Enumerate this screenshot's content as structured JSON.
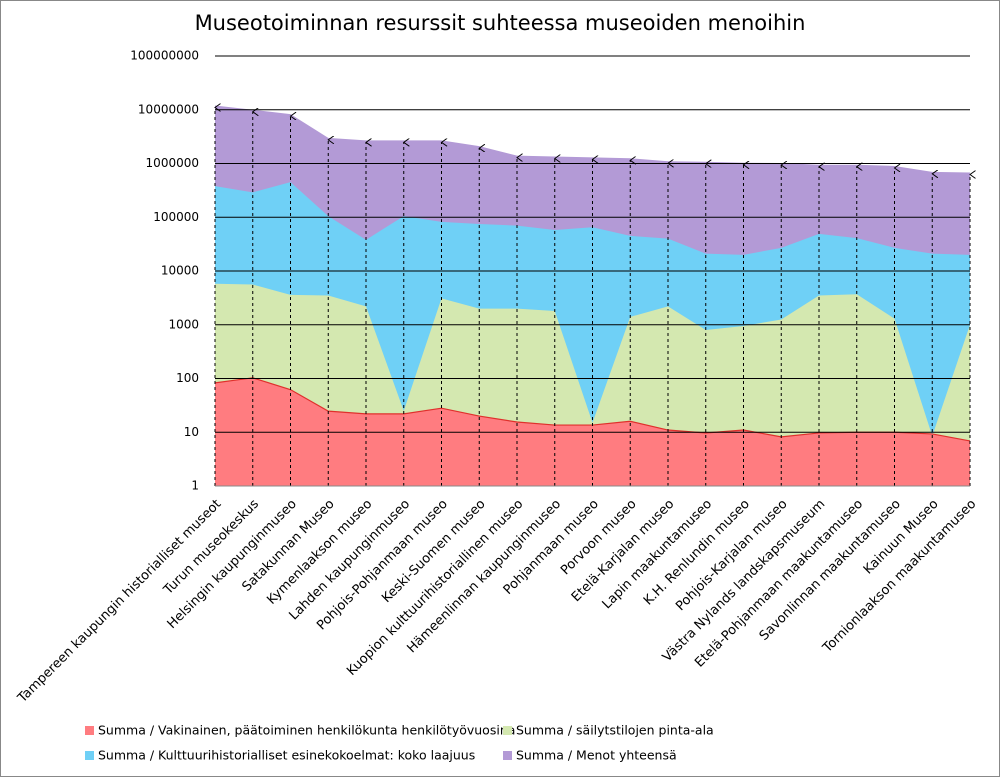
{
  "chart_data": {
    "type": "area",
    "title": "Museotoiminnan resurssit suhteessa museoiden menoihin",
    "categories": [
      "Tampereen kaupungin historialliset museot",
      "Turun museokeskus",
      "Helsingin kaupunginmuseo",
      "Satakunnan Museo",
      "Kymenlaakson museo",
      "Lahden kaupunginmuseo",
      "Pohjois-Pohjanmaan museo",
      "Keski-Suomen museo",
      "Kuopion kulttuurihistoriallinen museo",
      "Hämeenlinnan kaupunginmuseo",
      "Pohjanmaan museo",
      "Porvoon museo",
      "Etelä-Karjalan museo",
      "Lapin maakuntamuseo",
      "K.H. Renlundin museo",
      "Pohjois-Karjalan museo",
      "Västra Nylands landskapsmuseum",
      "Etelä-Pohjanmaan maakuntamuseo",
      "Savonlinnan maakuntamuseo",
      "Kainuun Museo",
      "Tornionlaakson maakuntamuseo"
    ],
    "series": [
      {
        "name": "Summa  / Vakinainen, päätoiminen henkilökunta henkilötyövuosina",
        "color": "#ff7c80",
        "line_color": "#e0302c",
        "values": [
          83,
          103,
          62,
          24.7,
          22,
          22,
          28,
          20,
          15.5,
          13.6,
          13.6,
          16,
          11,
          9.7,
          11,
          8.2,
          9.7,
          10,
          10,
          9.3,
          6.9
        ]
      },
      {
        "name": "Summa  / säilytstilojen pinta-ala",
        "color": "#d4e8b0",
        "values": [
          5800,
          5600,
          3600,
          3500,
          2200,
          25,
          3100,
          2000,
          2000,
          1800,
          15,
          1400,
          2200,
          800,
          950,
          1250,
          3500,
          3700,
          1300,
          8.5,
          1000
        ]
      },
      {
        "name": "Summa  / Kulttuurihistorialliset esinekokoelmat: koko laajuus",
        "color": "#6fd0f6",
        "values": [
          380000,
          290000,
          450000,
          105000,
          38000,
          105000,
          82000,
          75000,
          70000,
          58000,
          65000,
          45000,
          40000,
          21000,
          20000,
          27000,
          49000,
          41000,
          27000,
          21000,
          20000
        ]
      },
      {
        "name": "Summa  / Menot yhteensä",
        "color": "#b39ad6",
        "values": [
          12000000,
          10000000,
          8300000,
          3000000,
          2700000,
          2700000,
          2700000,
          2100000,
          1400000,
          1350000,
          1300000,
          1250000,
          1100000,
          1080000,
          1030000,
          1020000,
          950000,
          950000,
          900000,
          700000,
          680000
        ]
      }
    ],
    "log_scale": true,
    "grid": true,
    "ylim": [
      1,
      100000000
    ],
    "yticks": [
      1,
      10,
      100,
      1000,
      10000,
      100000,
      1000000,
      10000000,
      100000000
    ],
    "legend": "bottom"
  }
}
